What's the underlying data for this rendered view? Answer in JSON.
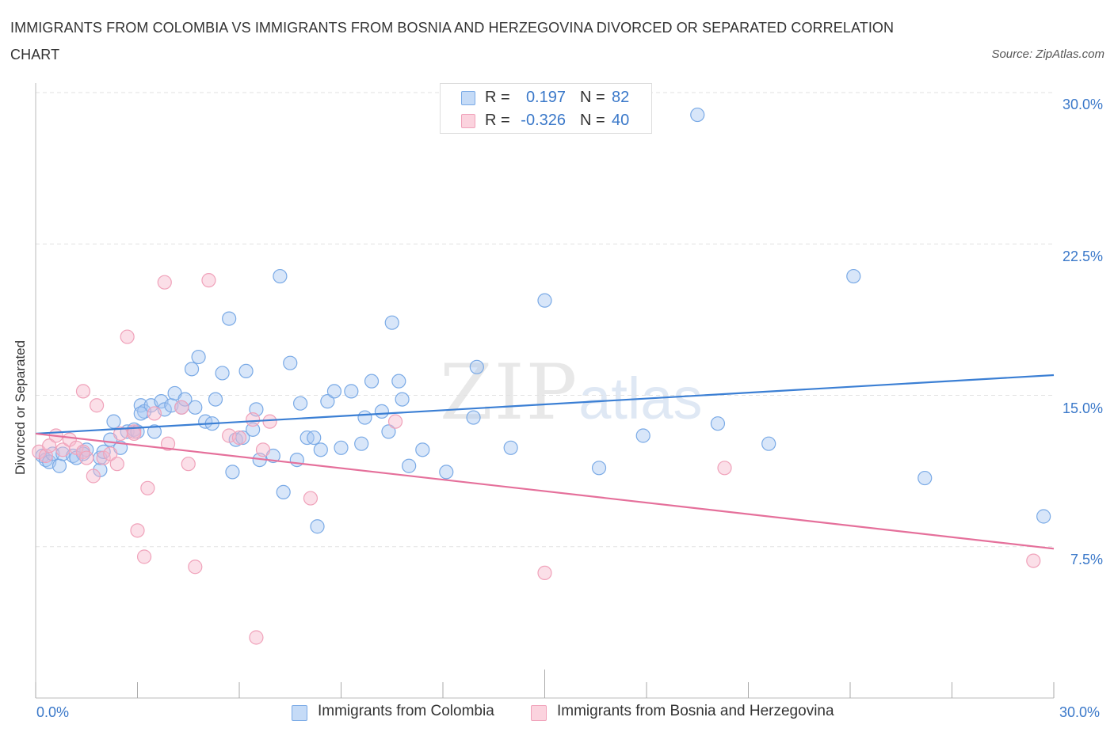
{
  "title": "IMMIGRANTS FROM COLOMBIA VS IMMIGRANTS FROM BOSNIA AND HERZEGOVINA DIVORCED OR SEPARATED CORRELATION CHART",
  "source": "Source: ZipAtlas.com",
  "watermark": {
    "a": "ZIP",
    "b": "atlas"
  },
  "legend_stats": [
    {
      "r_label": "R =",
      "r_value": "0.197",
      "n_label": "N =",
      "n_value": "82",
      "color": "#a9c8f1"
    },
    {
      "r_label": "R =",
      "r_value": "-0.326",
      "n_label": "N =",
      "n_value": "40",
      "color": "#f6b9cb"
    }
  ],
  "chart_data": {
    "type": "scatter",
    "title": "IMMIGRANTS FROM COLOMBIA VS IMMIGRANTS FROM BOSNIA AND HERZEGOVINA DIVORCED OR SEPARATED CORRELATION CHART",
    "xlabel": "",
    "ylabel": "Divorced or Separated",
    "xlim": [
      0,
      30
    ],
    "ylim": [
      0,
      30
    ],
    "x_tick_labels": [
      "0.0%",
      "30.0%"
    ],
    "y_ticks": [
      7.5,
      15.0,
      22.5,
      30.0
    ],
    "y_tick_labels": [
      "7.5%",
      "15.0%",
      "22.5%",
      "30.0%"
    ],
    "grid": "horizontal dashed",
    "legend_position": "bottom",
    "series": [
      {
        "name": "Immigrants from Colombia",
        "color": "#7aaae6",
        "trend": {
          "x": [
            0,
            30
          ],
          "y": [
            13.1,
            16.0
          ]
        },
        "points": [
          [
            0.2,
            12.0
          ],
          [
            0.3,
            11.8
          ],
          [
            0.4,
            11.7
          ],
          [
            0.5,
            12.1
          ],
          [
            0.7,
            11.5
          ],
          [
            0.8,
            12.1
          ],
          [
            1.1,
            12.0
          ],
          [
            1.5,
            12.3
          ],
          [
            1.4,
            12.1
          ],
          [
            1.9,
            11.3
          ],
          [
            1.9,
            11.9
          ],
          [
            2.2,
            12.8
          ],
          [
            2.3,
            13.7
          ],
          [
            2.5,
            12.4
          ],
          [
            2.7,
            13.2
          ],
          [
            2.9,
            13.3
          ],
          [
            3.0,
            13.2
          ],
          [
            3.1,
            14.5
          ],
          [
            3.2,
            14.2
          ],
          [
            3.4,
            14.5
          ],
          [
            3.5,
            13.2
          ],
          [
            3.7,
            14.7
          ],
          [
            3.8,
            14.3
          ],
          [
            4.0,
            14.5
          ],
          [
            4.1,
            15.1
          ],
          [
            4.3,
            14.4
          ],
          [
            4.4,
            14.8
          ],
          [
            4.6,
            16.3
          ],
          [
            4.7,
            14.4
          ],
          [
            4.8,
            16.9
          ],
          [
            5.0,
            13.7
          ],
          [
            5.2,
            13.6
          ],
          [
            5.3,
            14.8
          ],
          [
            5.5,
            16.1
          ],
          [
            5.7,
            18.8
          ],
          [
            5.8,
            11.2
          ],
          [
            5.9,
            12.8
          ],
          [
            6.1,
            12.9
          ],
          [
            6.2,
            16.2
          ],
          [
            6.4,
            13.3
          ],
          [
            6.5,
            14.3
          ],
          [
            6.6,
            11.8
          ],
          [
            7.0,
            12.0
          ],
          [
            7.2,
            20.9
          ],
          [
            7.3,
            10.2
          ],
          [
            7.5,
            16.6
          ],
          [
            7.7,
            11.8
          ],
          [
            7.8,
            14.6
          ],
          [
            8.0,
            12.9
          ],
          [
            8.2,
            12.9
          ],
          [
            8.3,
            8.5
          ],
          [
            8.4,
            12.3
          ],
          [
            8.6,
            14.7
          ],
          [
            8.8,
            15.2
          ],
          [
            9.0,
            12.4
          ],
          [
            9.3,
            15.2
          ],
          [
            9.6,
            12.6
          ],
          [
            9.7,
            13.9
          ],
          [
            9.9,
            15.7
          ],
          [
            10.2,
            14.2
          ],
          [
            10.4,
            13.2
          ],
          [
            10.5,
            18.6
          ],
          [
            10.7,
            15.7
          ],
          [
            10.8,
            14.8
          ],
          [
            11.0,
            11.5
          ],
          [
            11.4,
            12.3
          ],
          [
            12.1,
            11.2
          ],
          [
            13.0,
            16.4
          ],
          [
            12.9,
            13.9
          ],
          [
            14.0,
            12.4
          ],
          [
            15.0,
            19.7
          ],
          [
            16.6,
            11.4
          ],
          [
            17.9,
            13.0
          ],
          [
            19.5,
            28.9
          ],
          [
            20.1,
            13.6
          ],
          [
            21.6,
            12.6
          ],
          [
            24.1,
            20.9
          ],
          [
            26.2,
            10.9
          ],
          [
            29.7,
            9.0
          ],
          [
            3.1,
            14.1
          ],
          [
            2.0,
            12.2
          ],
          [
            1.2,
            11.9
          ]
        ]
      },
      {
        "name": "Immigrants from Bosnia and Herzegovina",
        "color": "#f0a2ba",
        "trend": {
          "x": [
            0,
            30
          ],
          "y": [
            13.1,
            7.4
          ]
        },
        "points": [
          [
            0.1,
            12.2
          ],
          [
            0.3,
            12.0
          ],
          [
            0.4,
            12.5
          ],
          [
            0.6,
            13.0
          ],
          [
            0.8,
            12.3
          ],
          [
            1.0,
            12.8
          ],
          [
            1.2,
            12.4
          ],
          [
            1.4,
            12.2
          ],
          [
            1.5,
            11.9
          ],
          [
            1.7,
            11.0
          ],
          [
            1.8,
            14.5
          ],
          [
            1.4,
            15.2
          ],
          [
            2.0,
            11.9
          ],
          [
            2.2,
            12.1
          ],
          [
            2.4,
            11.6
          ],
          [
            2.5,
            13.1
          ],
          [
            2.7,
            17.9
          ],
          [
            2.9,
            13.2
          ],
          [
            3.0,
            8.3
          ],
          [
            3.2,
            7.0
          ],
          [
            3.3,
            10.4
          ],
          [
            3.5,
            14.1
          ],
          [
            3.8,
            20.6
          ],
          [
            3.9,
            12.6
          ],
          [
            4.3,
            14.4
          ],
          [
            4.5,
            11.6
          ],
          [
            4.7,
            6.5
          ],
          [
            5.1,
            20.7
          ],
          [
            5.7,
            13.0
          ],
          [
            6.0,
            12.9
          ],
          [
            6.4,
            13.8
          ],
          [
            6.5,
            3.0
          ],
          [
            6.7,
            12.3
          ],
          [
            6.9,
            13.7
          ],
          [
            8.1,
            9.9
          ],
          [
            10.6,
            13.7
          ],
          [
            15.0,
            6.2
          ],
          [
            20.3,
            11.4
          ],
          [
            29.4,
            6.8
          ],
          [
            2.9,
            13.1
          ]
        ]
      }
    ]
  },
  "legend_bottom": [
    {
      "label": "Immigrants from Colombia",
      "color": "#a9c8f1"
    },
    {
      "label": "Immigrants from Bosnia and Herzegovina",
      "color": "#f6b9cb"
    }
  ],
  "axis_labels": {
    "x_left": "0.0%",
    "x_right": "30.0%"
  }
}
